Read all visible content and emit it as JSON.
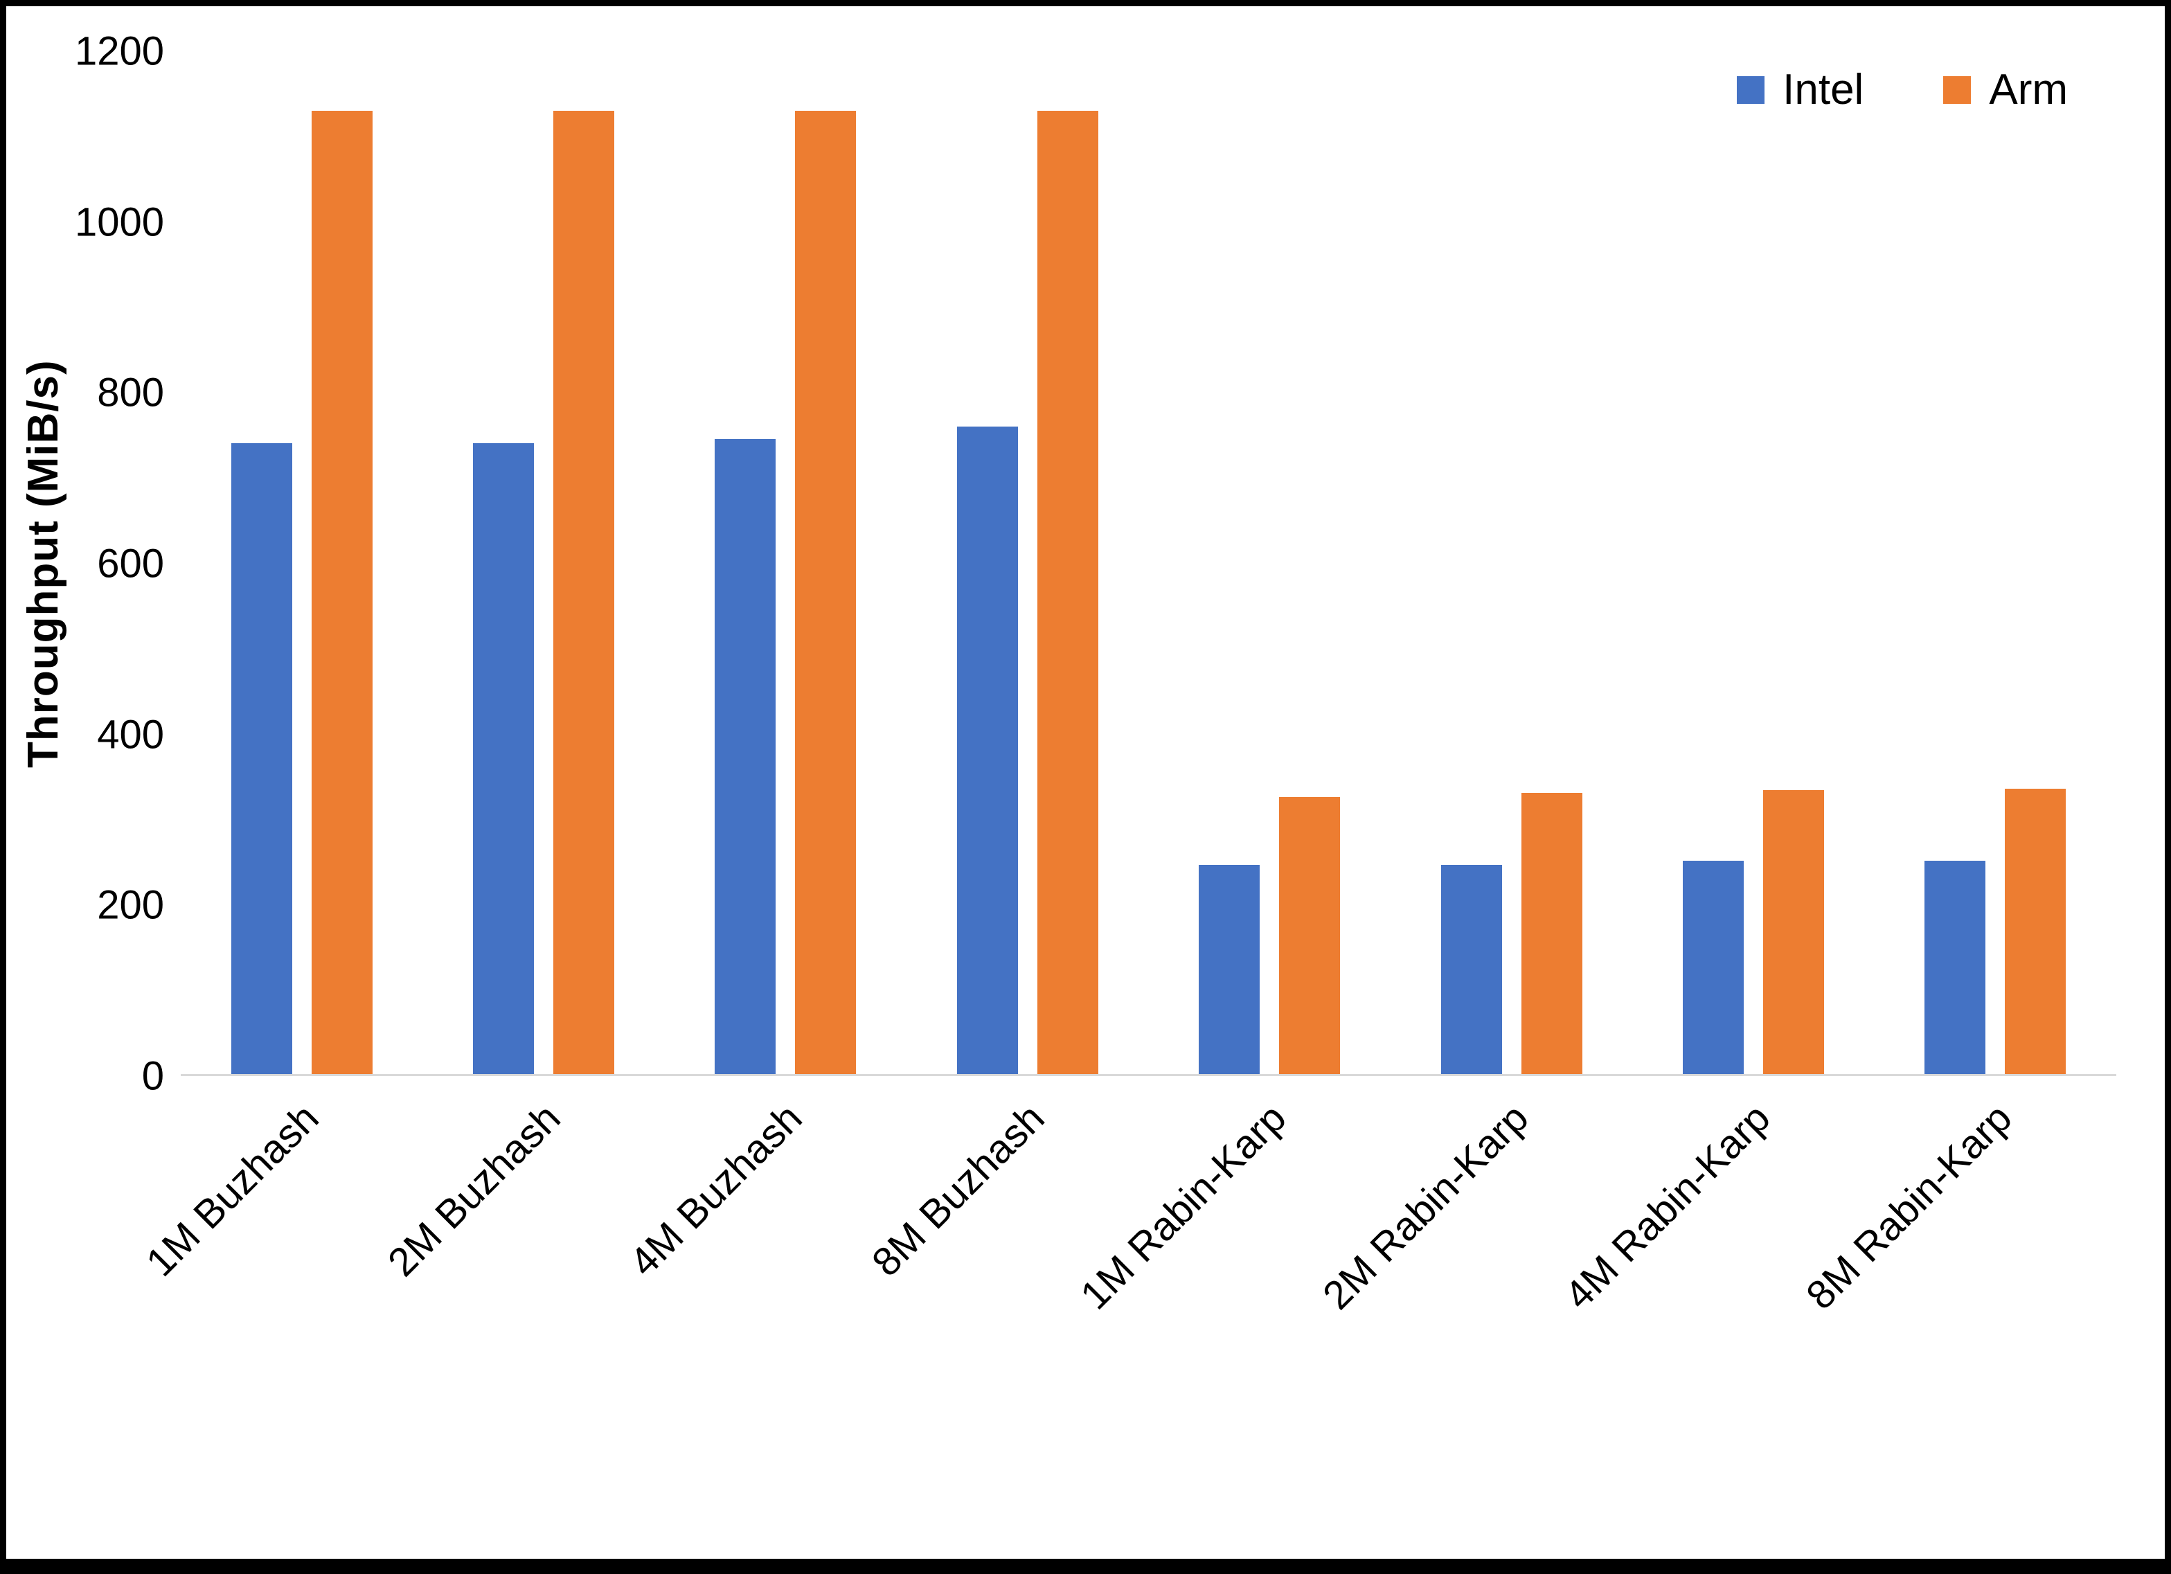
{
  "chart_data": {
    "type": "bar",
    "title": "",
    "xlabel": "",
    "ylabel": "Throughput (MiB/s)",
    "ylim": [
      0,
      1200
    ],
    "yticks": [
      0,
      200,
      400,
      600,
      800,
      1000,
      1200
    ],
    "grid": false,
    "legend_position": "top-right",
    "categories": [
      "1M Buzhash",
      "2M Buzhash",
      "4M Buzhash",
      "8M Buzhash",
      "1M Rabin-Karp",
      "2M Rabin-Karp",
      "4M Rabin-Karp",
      "8M Rabin-Karp"
    ],
    "series": [
      {
        "name": "Intel",
        "color": "#4472C4",
        "values": [
          740,
          740,
          745,
          760,
          245,
          245,
          250,
          250
        ]
      },
      {
        "name": "Arm",
        "color": "#ED7D31",
        "values": [
          1130,
          1130,
          1130,
          1130,
          325,
          330,
          333,
          335
        ]
      }
    ],
    "colors": {
      "axis_line": "#D9D9D9",
      "text": "#000000",
      "background": "#FFFFFF",
      "frame": "#000000"
    }
  }
}
